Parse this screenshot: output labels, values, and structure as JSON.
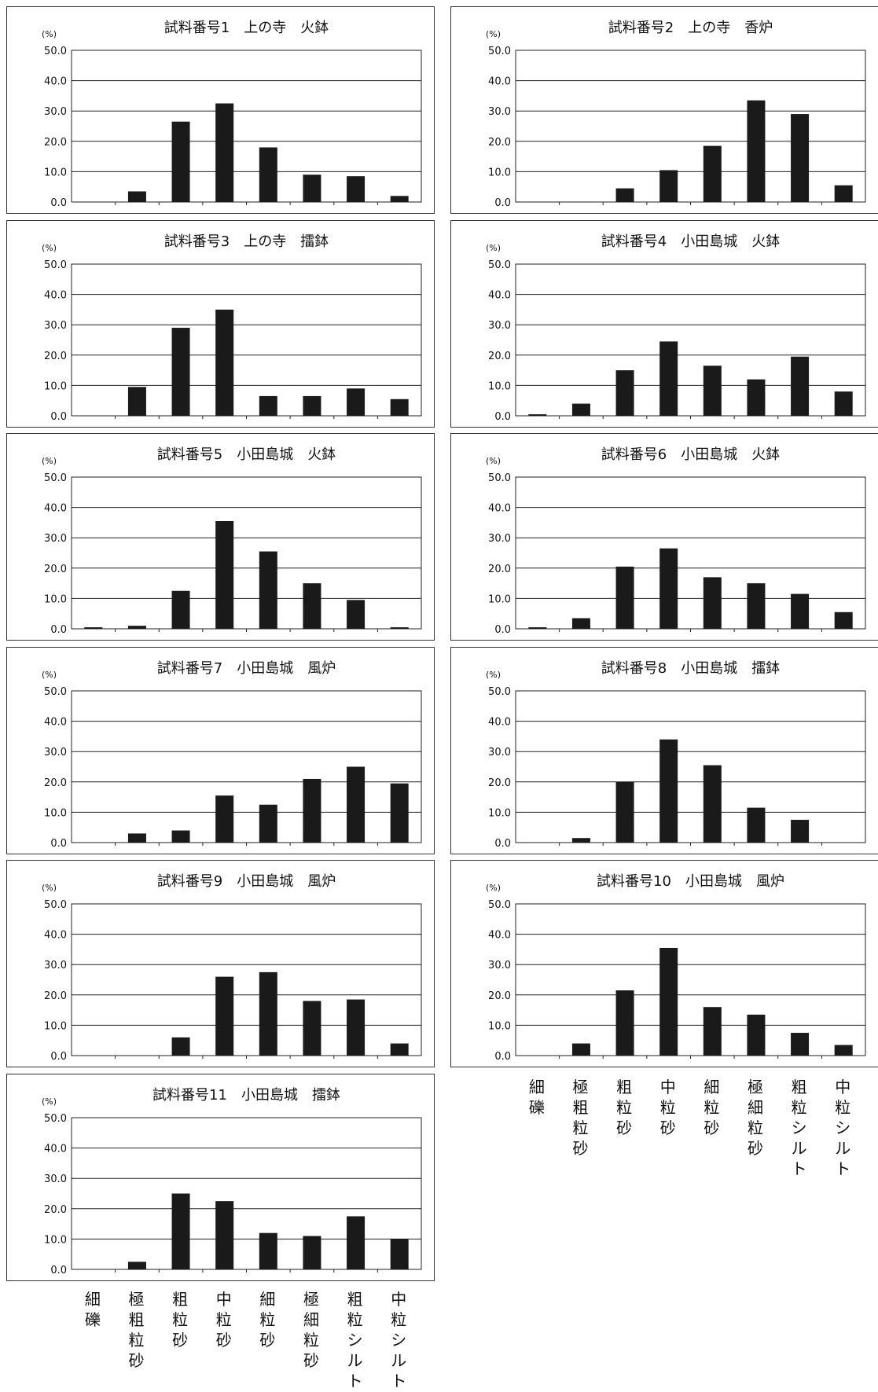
{
  "chart_data": [
    {
      "type": "bar",
      "title": "試料番号1　上の寺　火鉢",
      "unit_label": "(%)",
      "ylim": [
        0,
        50
      ],
      "yticks": [
        "50.0",
        "40.0",
        "30.0",
        "20.0",
        "10.0",
        "0.0"
      ],
      "grid": true,
      "categories": [
        "細礫",
        "極粗粒砂",
        "粗粒砂",
        "中粒砂",
        "細粒砂",
        "極細粒砂",
        "粗粒シルト",
        "中粒シルト"
      ],
      "values": [
        0,
        3.5,
        26.5,
        32.5,
        18,
        9,
        8.5,
        2
      ]
    },
    {
      "type": "bar",
      "title": "試料番号2　上の寺　香炉",
      "unit_label": "(%)",
      "ylim": [
        0,
        50
      ],
      "yticks": [
        "50.0",
        "40.0",
        "30.0",
        "20.0",
        "10.0",
        "0.0"
      ],
      "grid": true,
      "categories": [
        "細礫",
        "極粗粒砂",
        "粗粒砂",
        "中粒砂",
        "細粒砂",
        "極細粒砂",
        "粗粒シルト",
        "中粒シルト"
      ],
      "values": [
        0,
        0,
        4.5,
        10.5,
        18.5,
        33.5,
        29,
        5.5
      ]
    },
    {
      "type": "bar",
      "title": "試料番号3　上の寺　擂鉢",
      "unit_label": "(%)",
      "ylim": [
        0,
        50
      ],
      "yticks": [
        "50.0",
        "40.0",
        "30.0",
        "20.0",
        "10.0",
        "0.0"
      ],
      "grid": true,
      "categories": [
        "細礫",
        "極粗粒砂",
        "粗粒砂",
        "中粒砂",
        "細粒砂",
        "極細粒砂",
        "粗粒シルト",
        "中粒シルト"
      ],
      "values": [
        0,
        9.5,
        29,
        35,
        6.5,
        6.5,
        9,
        5.5
      ]
    },
    {
      "type": "bar",
      "title": "試料番号4　小田島城　火鉢",
      "unit_label": "(%)",
      "ylim": [
        0,
        50
      ],
      "yticks": [
        "50.0",
        "40.0",
        "30.0",
        "20.0",
        "10.0",
        "0.0"
      ],
      "grid": true,
      "categories": [
        "細礫",
        "極粗粒砂",
        "粗粒砂",
        "中粒砂",
        "細粒砂",
        "極細粒砂",
        "粗粒シルト",
        "中粒シルト"
      ],
      "values": [
        0.5,
        4,
        15,
        24.5,
        16.5,
        12,
        19.5,
        8
      ]
    },
    {
      "type": "bar",
      "title": "試料番号5　小田島城　火鉢",
      "unit_label": "(%)",
      "ylim": [
        0,
        50
      ],
      "yticks": [
        "50.0",
        "40.0",
        "30.0",
        "20.0",
        "10.0",
        "0.0"
      ],
      "grid": true,
      "categories": [
        "細礫",
        "極粗粒砂",
        "粗粒砂",
        "中粒砂",
        "細粒砂",
        "極細粒砂",
        "粗粒シルト",
        "中粒シルト"
      ],
      "values": [
        0.5,
        1,
        12.5,
        35.5,
        25.5,
        15,
        9.5,
        0.5
      ]
    },
    {
      "type": "bar",
      "title": "試料番号6　小田島城　火鉢",
      "unit_label": "(%)",
      "ylim": [
        0,
        50
      ],
      "yticks": [
        "50.0",
        "40.0",
        "30.0",
        "20.0",
        "10.0",
        "0.0"
      ],
      "grid": true,
      "categories": [
        "細礫",
        "極粗粒砂",
        "粗粒砂",
        "中粒砂",
        "細粒砂",
        "極細粒砂",
        "粗粒シルト",
        "中粒シルト"
      ],
      "values": [
        0.5,
        3.5,
        20.5,
        26.5,
        17,
        15,
        11.5,
        5.5
      ]
    },
    {
      "type": "bar",
      "title": "試料番号7　小田島城　風炉",
      "unit_label": "(%)",
      "ylim": [
        0,
        50
      ],
      "yticks": [
        "50.0",
        "40.0",
        "30.0",
        "20.0",
        "10.0",
        "0.0"
      ],
      "grid": true,
      "categories": [
        "細礫",
        "極粗粒砂",
        "粗粒砂",
        "中粒砂",
        "細粒砂",
        "極細粒砂",
        "粗粒シルト",
        "中粒シルト"
      ],
      "values": [
        0,
        3,
        4,
        15.5,
        12.5,
        21,
        25,
        19.5
      ]
    },
    {
      "type": "bar",
      "title": "試料番号8　小田島城　擂鉢",
      "unit_label": "(%)",
      "ylim": [
        0,
        50
      ],
      "yticks": [
        "50.0",
        "40.0",
        "30.0",
        "20.0",
        "10.0",
        "0.0"
      ],
      "grid": true,
      "categories": [
        "細礫",
        "極粗粒砂",
        "粗粒砂",
        "中粒砂",
        "細粒砂",
        "極細粒砂",
        "粗粒シルト",
        "中粒シルト"
      ],
      "values": [
        0,
        1.5,
        20,
        34,
        25.5,
        11.5,
        7.5,
        0
      ]
    },
    {
      "type": "bar",
      "title": "試料番号9　小田島城　風炉",
      "unit_label": "(%)",
      "ylim": [
        0,
        50
      ],
      "yticks": [
        "50.0",
        "40.0",
        "30.0",
        "20.0",
        "10.0",
        "0.0"
      ],
      "grid": true,
      "categories": [
        "細礫",
        "極粗粒砂",
        "粗粒砂",
        "中粒砂",
        "細粒砂",
        "極細粒砂",
        "粗粒シルト",
        "中粒シルト"
      ],
      "values": [
        0,
        0,
        6,
        26,
        27.5,
        18,
        18.5,
        4
      ]
    },
    {
      "type": "bar",
      "title": "試料番号10　小田島城　風炉",
      "unit_label": "(%)",
      "ylim": [
        0,
        50
      ],
      "yticks": [
        "50.0",
        "40.0",
        "30.0",
        "20.0",
        "10.0",
        "0.0"
      ],
      "grid": true,
      "categories": [
        "細礫",
        "極粗粒砂",
        "粗粒砂",
        "中粒砂",
        "細粒砂",
        "極細粒砂",
        "粗粒シルト",
        "中粒シルト"
      ],
      "values": [
        0,
        4,
        21.5,
        35.5,
        16,
        13.5,
        7.5,
        3.5
      ]
    },
    {
      "type": "bar",
      "title": "試料番号11　小田島城　擂鉢",
      "unit_label": "(%)",
      "ylim": [
        0,
        50
      ],
      "yticks": [
        "50.0",
        "40.0",
        "30.0",
        "20.0",
        "10.0",
        "0.0"
      ],
      "grid": true,
      "categories": [
        "細礫",
        "極粗粒砂",
        "粗粒砂",
        "中粒砂",
        "細粒砂",
        "極細粒砂",
        "粗粒シルト",
        "中粒シルト"
      ],
      "values": [
        0,
        2.5,
        25,
        22.5,
        12,
        11,
        17.5,
        10
      ]
    }
  ],
  "category_labels": [
    "細礫",
    "極粗粒砂",
    "粗粒砂",
    "中粒砂",
    "細粒砂",
    "極細粒砂",
    "粗粒シルト",
    "中粒シルト"
  ],
  "colors": {
    "bar": "#1a1a1a",
    "grid": "#222222",
    "border": "#333333"
  }
}
